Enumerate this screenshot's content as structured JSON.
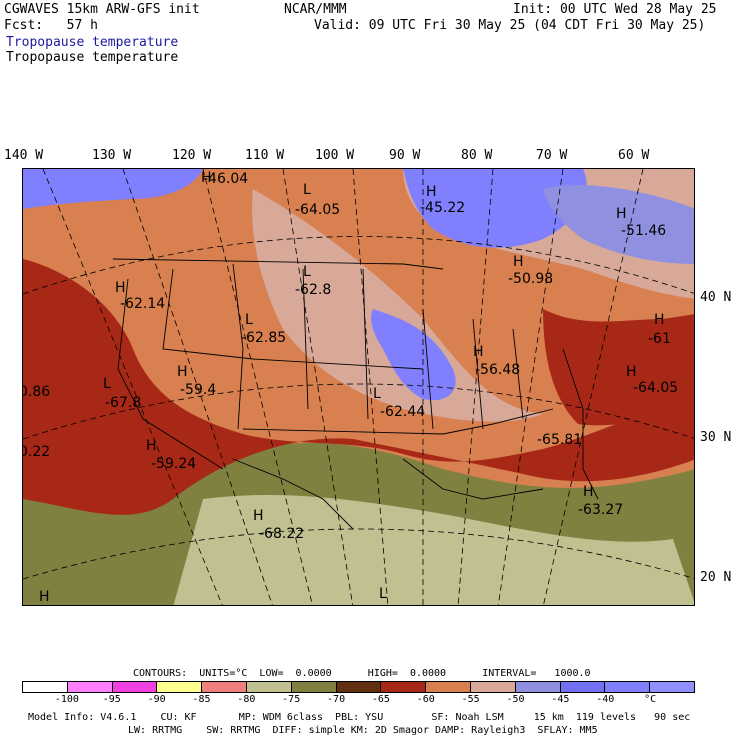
{
  "header": {
    "model": "CGWAVES 15km ARW-GFS init",
    "fcst": "Fcst:   57 h",
    "org": "NCAR/MMM",
    "init": "Init: 00 UTC Wed 28 May 25",
    "valid": "Valid: 09 UTC Fri 30 May 25 (04 CDT Fri 30 May 25)",
    "field_title": "Tropopause temperature",
    "field_subtitle": "Tropopause temperature"
  },
  "lon_labels": [
    "140 W",
    "130 W",
    "120 W",
    "110 W",
    "100 W",
    "90 W",
    "80 W",
    "70 W",
    "60 W"
  ],
  "lat_labels": [
    "40 N",
    "30 N",
    "20 N"
  ],
  "map_labels": {
    "h1": "H",
    "v1": "-46.04",
    "l1": "L",
    "v2": "-64.05",
    "h2": "H",
    "v3": "-45.22",
    "h3": "H",
    "v4": "-51.46",
    "l2": "L",
    "v5": "-62.8",
    "h4": "H",
    "v6": "-50.98",
    "h5": "H",
    "v7": "-62.14",
    "l3": "L",
    "v8": "-62.85",
    "h6": "H",
    "v9": "-61",
    "v10": "0.86",
    "l4": "L",
    "v11": "-67.8",
    "h7": "H",
    "v12": "-59.4",
    "h8": "H",
    "v13": "-56.48",
    "l5": "L",
    "v14": "-62.44",
    "h9": "H",
    "v15": "-64.05",
    "v16": "0.22",
    "h10": "H",
    "v17": "-59.24",
    "v18": "-65.81",
    "h11": "H",
    "v19": "-68.22",
    "h12": "H",
    "v20": "-63.27",
    "h13": "H",
    "l6": "L"
  },
  "contours": {
    "text": "CONTOURS:  UNITS=°C  LOW=  0.0000      HIGH=  0.0000      INTERVAL=   1000.0"
  },
  "colorbar": {
    "colors": [
      "#ffffff",
      "#ff80ff",
      "#f040e0",
      "#ffff90",
      "#f08080",
      "#c0c090",
      "#808040",
      "#603010",
      "#a82818",
      "#d88050",
      "#d8a898",
      "#9090e0",
      "#7070f0",
      "#8080ff",
      "#9090ff"
    ],
    "ticks": [
      "-100",
      "-95",
      "-90",
      "-85",
      "-80",
      "-75",
      "-70",
      "-65",
      "-60",
      "-55",
      "-50",
      "-45",
      "-40",
      "°C"
    ]
  },
  "footer": {
    "line1": "Model Info: V4.6.1    CU: KF       MP: WDM 6class  PBL: YSU        SF: Noah LSM     15 km  119 levels   90 sec",
    "line2": "LW: RRTMG    SW: RRTMG  DIFF: simple KM: 2D Smagor DAMP: Rayleigh3  SFLAY: MM5"
  }
}
